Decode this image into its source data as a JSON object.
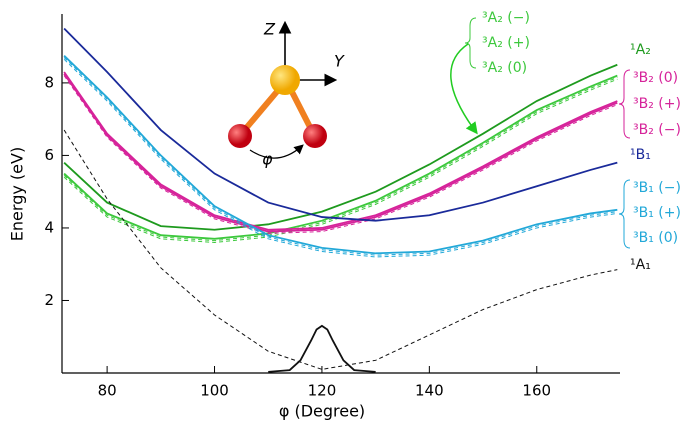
{
  "chart_data": {
    "type": "line",
    "x_label": "φ (Degree)",
    "y_label": "Energy (eV)",
    "x": [
      72,
      80,
      90,
      100,
      110,
      120,
      130,
      140,
      150,
      160,
      170,
      175
    ],
    "xlim": [
      71.6,
      175.5
    ],
    "ylim": [
      0,
      9.9
    ],
    "xticks": [
      80,
      100,
      120,
      140,
      160
    ],
    "yticks": [
      2,
      4,
      6,
      8
    ],
    "series": [
      {
        "name": "¹A₂",
        "color": "#1e9a1e",
        "dash": false,
        "values": [
          5.8,
          4.7,
          4.05,
          3.95,
          4.1,
          4.45,
          5.0,
          5.75,
          6.6,
          7.5,
          8.2,
          8.5
        ]
      },
      {
        "name": "³A₂ (−)",
        "color": "#3cc83c",
        "dash": false,
        "values": [
          5.5,
          4.4,
          3.8,
          3.7,
          3.85,
          4.2,
          4.75,
          5.5,
          6.35,
          7.25,
          7.9,
          8.2
        ]
      },
      {
        "name": "³A₂ (+)",
        "color": "#3cc83c",
        "dash": true,
        "values": [
          5.45,
          4.35,
          3.75,
          3.65,
          3.8,
          4.15,
          4.7,
          5.45,
          6.3,
          7.2,
          7.85,
          8.15
        ]
      },
      {
        "name": "³A₂ (0)",
        "color": "#3cc83c",
        "dash": true,
        "values": [
          5.4,
          4.3,
          3.7,
          3.6,
          3.75,
          4.1,
          4.65,
          5.4,
          6.25,
          7.15,
          7.8,
          8.1
        ]
      },
      {
        "name": "³B₂ (0)",
        "color": "#d6239a",
        "dash": false,
        "values": [
          8.3,
          6.6,
          5.2,
          4.35,
          3.95,
          4.0,
          4.35,
          4.95,
          5.7,
          6.5,
          7.2,
          7.5
        ]
      },
      {
        "name": "³B₂ (+)",
        "color": "#d6239a",
        "dash": false,
        "values": [
          8.25,
          6.55,
          5.15,
          4.3,
          3.9,
          3.95,
          4.3,
          4.9,
          5.65,
          6.45,
          7.15,
          7.45
        ]
      },
      {
        "name": "³B₂ (−)",
        "color": "#d6239a",
        "dash": true,
        "values": [
          8.2,
          6.5,
          5.1,
          4.25,
          3.85,
          3.9,
          4.25,
          4.85,
          5.6,
          6.4,
          7.1,
          7.4
        ]
      },
      {
        "name": "¹B₁",
        "color": "#1a2a9a",
        "dash": false,
        "values": [
          9.5,
          8.3,
          6.7,
          5.5,
          4.7,
          4.3,
          4.2,
          4.35,
          4.7,
          5.15,
          5.6,
          5.8
        ]
      },
      {
        "name": "³B₁ (−)",
        "color": "#22a8d8",
        "dash": false,
        "values": [
          8.75,
          7.6,
          6.0,
          4.6,
          3.8,
          3.45,
          3.3,
          3.35,
          3.65,
          4.1,
          4.4,
          4.5
        ]
      },
      {
        "name": "³B₁ (+)",
        "color": "#22a8d8",
        "dash": true,
        "values": [
          8.7,
          7.55,
          5.95,
          4.55,
          3.75,
          3.4,
          3.25,
          3.3,
          3.6,
          4.05,
          4.35,
          4.45
        ]
      },
      {
        "name": "³B₁ (0)",
        "color": "#22a8d8",
        "dash": true,
        "values": [
          8.65,
          7.5,
          5.9,
          4.5,
          3.7,
          3.35,
          3.2,
          3.25,
          3.55,
          4.0,
          4.3,
          4.4
        ]
      },
      {
        "name": "¹A₁",
        "color": "#111111",
        "dash": true,
        "values": [
          6.7,
          4.8,
          2.9,
          1.6,
          0.6,
          0.1,
          0.35,
          1.05,
          1.75,
          2.3,
          2.7,
          2.85
        ]
      },
      {
        "color": "#111111",
        "dash": false,
        "x": [
          110,
          114,
          116,
          118,
          119,
          120,
          121,
          122,
          124,
          126,
          130
        ],
        "values": [
          0.03,
          0.08,
          0.35,
          0.9,
          1.2,
          1.3,
          1.2,
          0.9,
          0.35,
          0.08,
          0.03
        ]
      }
    ]
  },
  "diagram": {
    "z_label": "Z",
    "y_label": "Y",
    "angle_label": "φ"
  }
}
